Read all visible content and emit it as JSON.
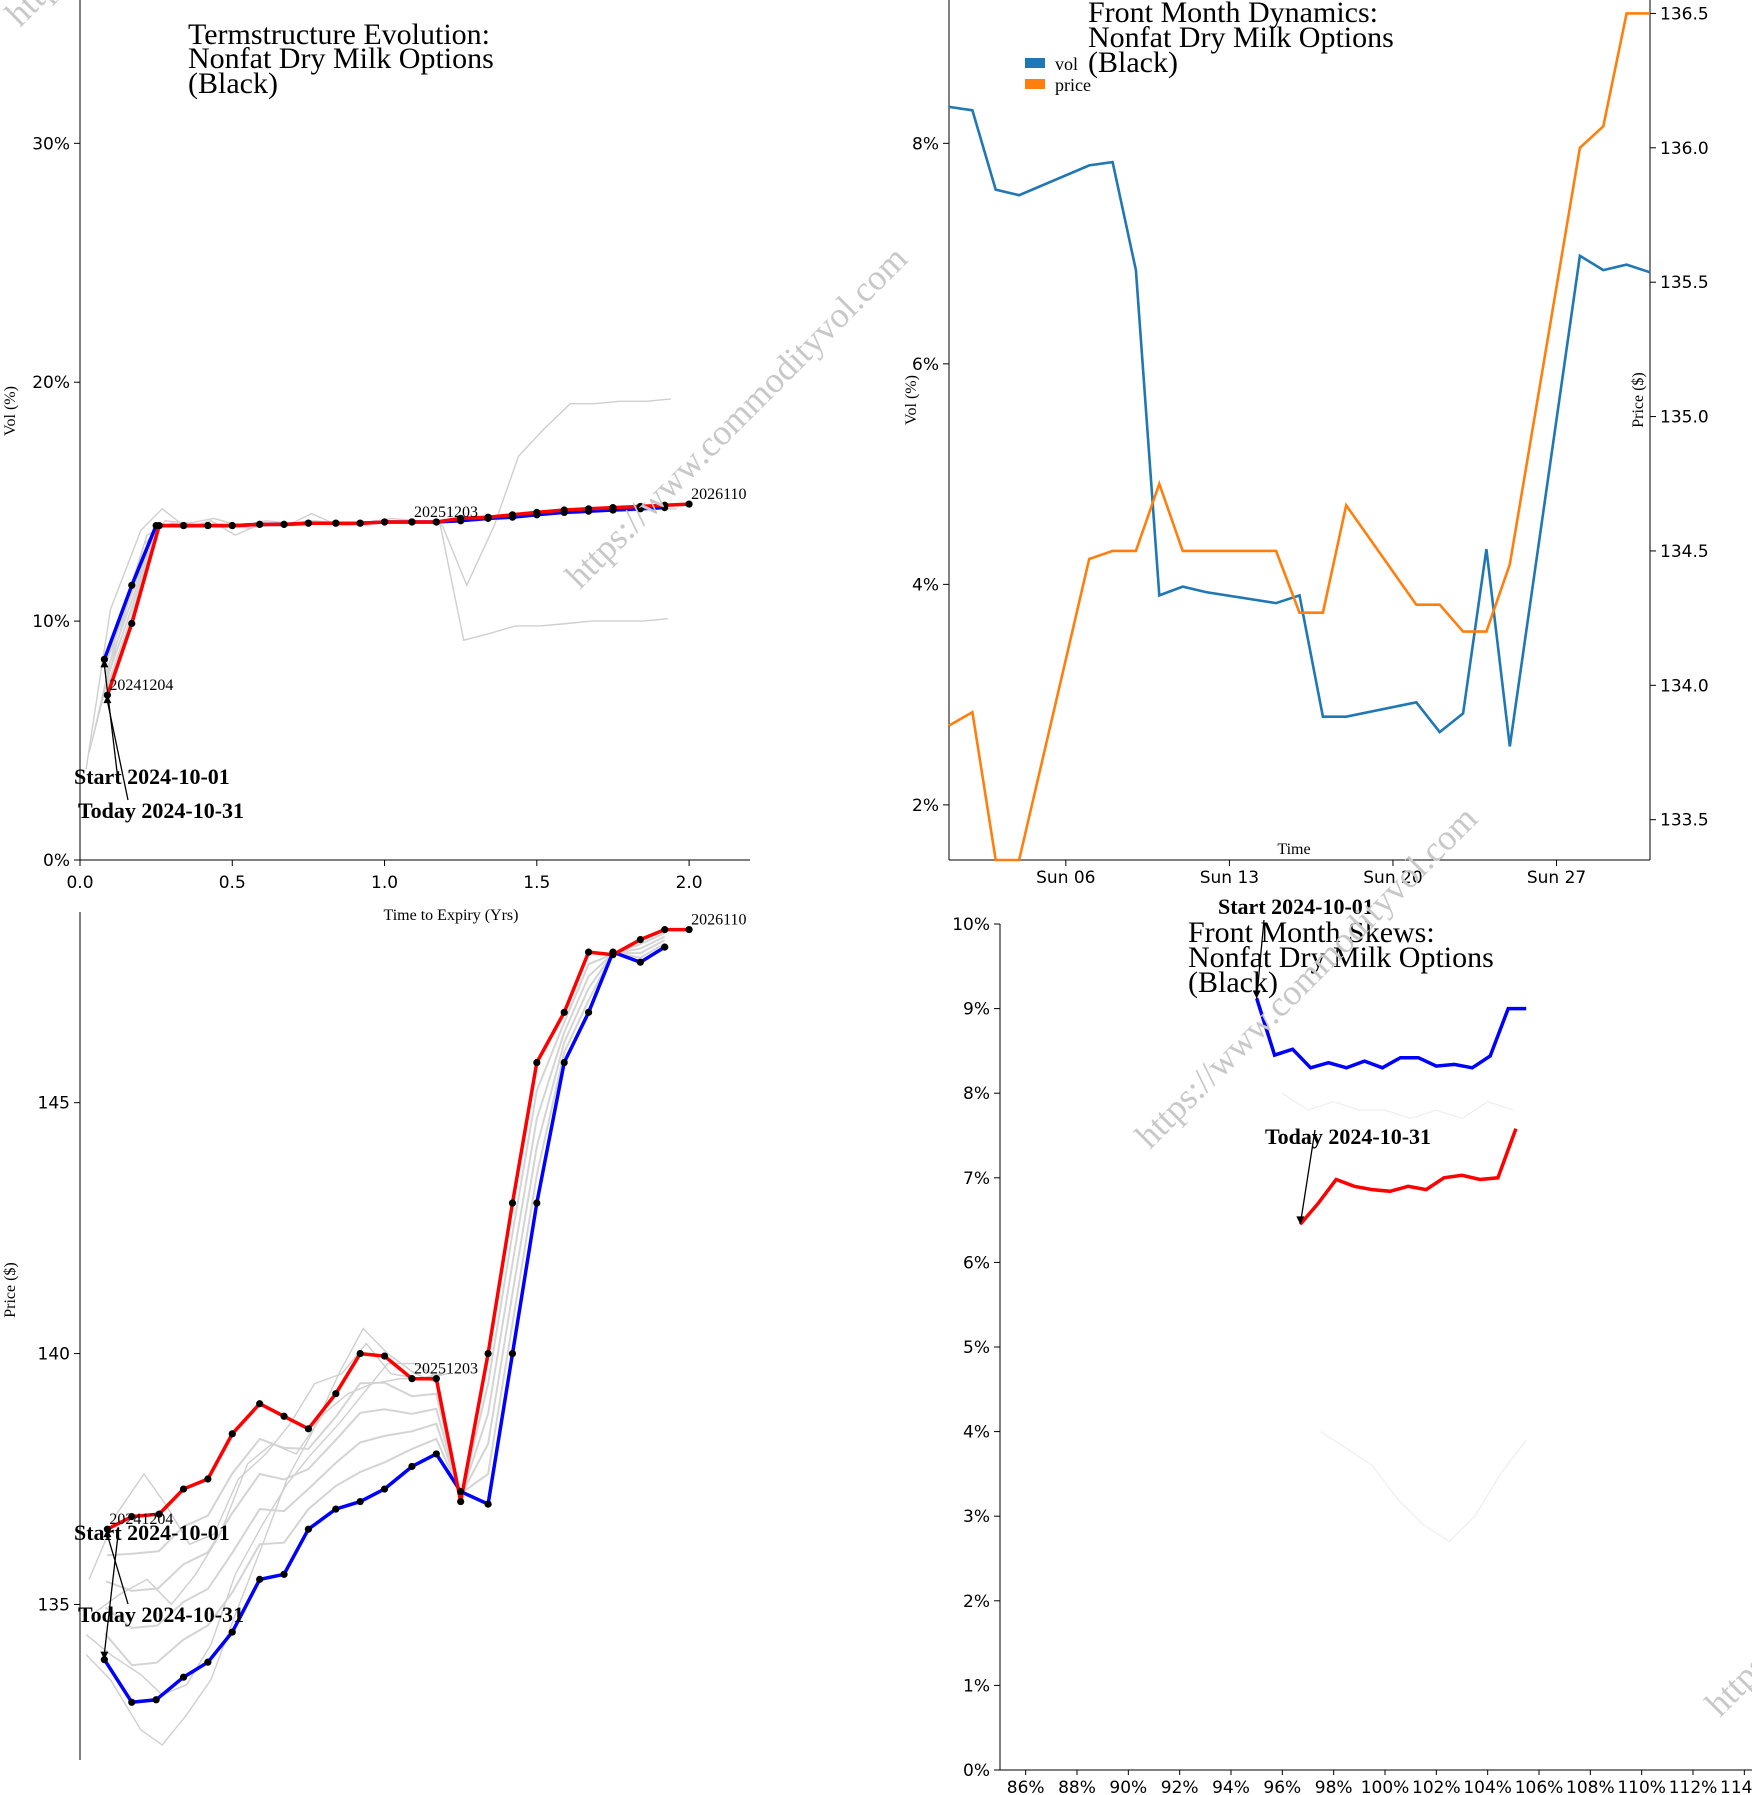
{
  "watermark": "https://www.commodityvol.com",
  "chart_data": [
    {
      "id": "termstructure",
      "type": "line",
      "title": [
        "Termstructure Evolution:",
        "Nonfat Dry Milk Options",
        "(Black)"
      ],
      "xlabel": "Time to Expiry (Yrs)",
      "ylabel": "Vol (%)",
      "xlim": [
        0,
        2.2
      ],
      "ylim": [
        0,
        36
      ],
      "xticks": [
        0,
        0.5,
        1.0,
        1.5,
        2.0
      ],
      "xtick_labels": [
        "0.0",
        "0.5",
        "1.0",
        "1.5",
        "2.0"
      ],
      "yticks": [
        0,
        10,
        20,
        30
      ],
      "ytick_labels": [
        "0%",
        "10%",
        "20%",
        "30%"
      ],
      "series": [
        {
          "color": "#0000ff",
          "x": [
            0.08,
            0.17,
            0.25,
            0.34,
            0.42,
            0.5,
            0.59,
            0.67,
            0.75,
            0.84,
            0.92,
            1.0,
            1.09,
            1.17,
            1.25,
            1.34,
            1.42,
            1.5,
            1.59,
            1.67,
            1.75,
            1.84,
            1.92
          ],
          "y": [
            8.4,
            11.5,
            14.0,
            14.0,
            14.0,
            14.0,
            14.05,
            14.05,
            14.1,
            14.1,
            14.1,
            14.15,
            14.15,
            14.15,
            14.2,
            14.3,
            14.35,
            14.45,
            14.55,
            14.6,
            14.65,
            14.7,
            14.75
          ]
        },
        {
          "color": "#ff0000",
          "x": [
            0.09,
            0.17,
            0.26,
            0.34,
            0.42,
            0.5,
            0.59,
            0.67,
            0.75,
            0.84,
            0.92,
            1.0,
            1.09,
            1.17,
            1.25,
            1.34,
            1.42,
            1.5,
            1.59,
            1.67,
            1.75,
            1.84,
            1.92,
            2.0
          ],
          "y": [
            6.9,
            9.9,
            14.0,
            14.0,
            14.0,
            14.0,
            14.05,
            14.05,
            14.1,
            14.1,
            14.1,
            14.15,
            14.15,
            14.15,
            14.3,
            14.35,
            14.45,
            14.55,
            14.65,
            14.7,
            14.75,
            14.8,
            14.85,
            14.9
          ]
        }
      ],
      "history": [
        {
          "x": [
            0.02,
            0.1,
            0.2,
            0.27,
            0.35,
            0.43,
            0.51,
            0.6,
            0.68,
            0.76,
            0.85,
            0.93,
            1.01,
            1.1,
            1.18,
            1.26,
            1.35,
            1.43,
            1.51,
            1.6,
            1.68,
            1.76,
            1.85,
            1.93
          ],
          "y": [
            3.8,
            10.5,
            13.8,
            14.7,
            13.9,
            14.2,
            13.6,
            14.1,
            14.0,
            14.5,
            14.0,
            14.1,
            14.2,
            14.1,
            14.2,
            9.2,
            9.5,
            9.8,
            9.8,
            9.9,
            10.0,
            10.0,
            10.0,
            10.1
          ]
        },
        {
          "x": [
            0.03,
            0.12,
            0.21,
            0.28,
            0.36,
            0.44,
            0.52,
            0.61,
            0.69,
            0.77,
            0.86,
            0.94,
            1.02,
            1.11,
            1.19,
            1.27,
            1.36,
            1.44,
            1.52,
            1.61,
            1.69,
            1.77,
            1.86,
            1.94
          ],
          "y": [
            4.5,
            9.0,
            13.2,
            14.2,
            14.1,
            14.3,
            14.0,
            14.2,
            14.1,
            14.2,
            14.1,
            14.0,
            14.3,
            14.2,
            14.0,
            11.5,
            14.0,
            16.9,
            18.0,
            19.1,
            19.1,
            19.2,
            19.2,
            19.3
          ]
        },
        {
          "x": [
            0.04,
            0.13,
            0.22,
            0.3,
            0.38,
            0.46,
            0.55,
            0.63,
            0.71,
            0.8,
            0.88,
            0.96,
            1.05,
            1.13,
            1.21,
            1.3,
            1.38,
            1.46,
            1.55,
            1.63,
            1.71,
            1.8,
            1.88,
            1.96
          ],
          "y": [
            5.0,
            10.0,
            13.6,
            14.1,
            14.0,
            14.0,
            13.9,
            14.0,
            14.0,
            14.1,
            14.0,
            14.1,
            14.1,
            14.1,
            14.2,
            14.2,
            14.3,
            14.4,
            14.5,
            14.5,
            14.6,
            14.6,
            14.7,
            14.7
          ]
        }
      ],
      "point_labels": [
        {
          "text": "20241204",
          "x": 0.09,
          "y": 6.9
        },
        {
          "text": "20251203",
          "x": 1.09,
          "y": 14.15
        },
        {
          "text": "2026110",
          "x": 2.0,
          "y": 14.9
        }
      ],
      "annotations": [
        {
          "text": "Start 2024-10-01",
          "target_x": 0.08,
          "target_y": 8.4
        },
        {
          "text": "Today 2024-10-31",
          "target_x": 0.09,
          "target_y": 6.9
        }
      ]
    },
    {
      "id": "frontmonth",
      "type": "line",
      "title": [
        "Front Month Dynamics:",
        "Nonfat Dry Milk Options",
        "(Black)"
      ],
      "xlabel": "Time",
      "ylabel": "Vol (%)",
      "ylabel2": "Price ($)",
      "x_start": "2024-10-01",
      "x_end": "2024-10-31",
      "ylim": [
        1.5,
        9.3
      ],
      "y2lim": [
        133.35,
        136.55
      ],
      "xticks": [
        5,
        12,
        19,
        26
      ],
      "xtick_labels": [
        "Sun 06",
        "Sun 13",
        "Sun 20",
        "Sun 27"
      ],
      "yticks": [
        2,
        4,
        6,
        8
      ],
      "ytick_labels": [
        "2%",
        "4%",
        "6%",
        "8%"
      ],
      "y2ticks": [
        133.5,
        134.0,
        134.5,
        135.0,
        135.5,
        136.0,
        136.5
      ],
      "y2tick_labels": [
        "133.5",
        "134.0",
        "134.5",
        "135.0",
        "135.5",
        "136.0",
        "136.5"
      ],
      "legend": {
        "position": "top-left"
      },
      "series": [
        {
          "name": "vol",
          "color": "#1f77b4",
          "axis": "left",
          "days": [
            0,
            1,
            2,
            3,
            6,
            7,
            8,
            9,
            10,
            11,
            14,
            15,
            16,
            17,
            20,
            21,
            22,
            23,
            24,
            27,
            28,
            29,
            30
          ],
          "values": [
            8.33,
            8.3,
            7.58,
            7.53,
            7.8,
            7.83,
            6.85,
            3.9,
            3.98,
            3.93,
            3.83,
            3.9,
            2.8,
            2.8,
            2.93,
            2.66,
            2.83,
            4.32,
            2.53,
            6.98,
            6.85,
            6.9,
            6.83
          ]
        },
        {
          "name": "price",
          "color": "#ff7f0e",
          "axis": "right",
          "days": [
            0,
            1,
            2,
            3,
            6,
            7,
            8,
            9,
            10,
            11,
            14,
            15,
            16,
            17,
            20,
            21,
            22,
            23,
            24,
            27,
            28,
            29,
            30
          ],
          "values": [
            133.85,
            133.9,
            133.35,
            133.35,
            134.47,
            134.5,
            134.5,
            134.75,
            134.5,
            134.5,
            134.5,
            134.27,
            134.27,
            134.67,
            134.3,
            134.3,
            134.2,
            134.2,
            134.45,
            136.0,
            136.08,
            136.5,
            136.5
          ]
        }
      ]
    },
    {
      "id": "prices",
      "type": "line",
      "title": [],
      "xlabel": "",
      "ylabel": "Price ($)",
      "xlim": [
        0,
        2.2
      ],
      "ylim": [
        131.9,
        148.8
      ],
      "yticks": [
        135,
        140,
        145
      ],
      "ytick_labels": [
        "135",
        "140",
        "145"
      ],
      "series": [
        {
          "color": "#0000ff",
          "x": [
            0.08,
            0.17,
            0.25,
            0.34,
            0.42,
            0.5,
            0.59,
            0.67,
            0.75,
            0.84,
            0.92,
            1.0,
            1.09,
            1.17,
            1.25,
            1.34,
            1.42,
            1.5,
            1.59,
            1.67,
            1.75,
            1.84,
            1.92
          ],
          "y": [
            133.9,
            133.05,
            133.1,
            133.55,
            133.85,
            134.45,
            135.5,
            135.6,
            136.5,
            136.9,
            137.05,
            137.3,
            137.75,
            138.0,
            137.25,
            137.0,
            140.0,
            143.0,
            145.8,
            146.8,
            148.0,
            147.8,
            148.1
          ]
        },
        {
          "color": "#ff0000",
          "x": [
            0.09,
            0.17,
            0.26,
            0.34,
            0.42,
            0.5,
            0.59,
            0.67,
            0.75,
            0.84,
            0.92,
            1.0,
            1.09,
            1.17,
            1.25,
            1.34,
            1.42,
            1.5,
            1.59,
            1.67,
            1.75,
            1.84,
            1.92,
            2.0
          ],
          "y": [
            136.5,
            136.75,
            136.8,
            137.3,
            137.5,
            138.4,
            139.0,
            138.75,
            138.5,
            139.2,
            140.0,
            139.95,
            139.5,
            139.5,
            137.05,
            140.0,
            143.0,
            145.8,
            146.8,
            148.0,
            147.95,
            148.25,
            148.45,
            148.45
          ]
        }
      ],
      "history": [
        {
          "x": [
            0.02,
            0.1,
            0.2,
            0.27,
            0.35,
            0.43,
            0.51,
            0.6,
            0.68,
            0.76,
            0.85,
            0.93,
            1.01,
            1.1,
            1.18
          ],
          "y": [
            134.0,
            133.5,
            132.5,
            132.2,
            132.8,
            133.5,
            134.8,
            136.2,
            137.5,
            138.4,
            139.6,
            140.5,
            140.0,
            139.6,
            139.4
          ]
        },
        {
          "x": [
            0.03,
            0.12,
            0.21,
            0.28,
            0.36,
            0.44,
            0.52,
            0.61,
            0.69,
            0.77,
            0.86,
            0.94,
            1.02,
            1.11,
            1.19
          ],
          "y": [
            135.5,
            136.8,
            137.6,
            137.0,
            136.2,
            136.4,
            137.5,
            138.0,
            138.6,
            139.4,
            139.6,
            140.2,
            139.6,
            139.5,
            139.6
          ]
        },
        {
          "x": [
            0.04,
            0.13,
            0.22,
            0.3,
            0.38,
            0.46,
            0.55,
            0.63,
            0.71,
            0.8,
            0.88,
            0.96,
            1.05,
            1.13,
            1.21
          ],
          "y": [
            134.8,
            135.2,
            135.5,
            135.0,
            135.6,
            136.4,
            137.8,
            138.2,
            138.0,
            138.8,
            139.2,
            139.4,
            139.5,
            139.5,
            139.6
          ]
        },
        {
          "x": [
            0.02,
            0.1,
            0.2,
            0.27,
            0.35,
            0.43,
            0.51,
            0.6,
            0.68,
            0.76,
            0.85,
            0.93,
            1.01,
            1.1,
            1.18
          ],
          "y": [
            134.4,
            134.0,
            133.6,
            133.2,
            133.4,
            134.2,
            135.6,
            136.6,
            137.4,
            138.0,
            138.6,
            139.2,
            139.8,
            139.8,
            139.5
          ]
        }
      ],
      "point_labels": [
        {
          "text": "20241204",
          "x": 0.09,
          "y": 136.5
        },
        {
          "text": "20251203",
          "x": 1.09,
          "y": 139.5
        },
        {
          "text": "2026110",
          "x": 2.0,
          "y": 148.45
        }
      ],
      "annotations": [
        {
          "text": "Start 2024-10-01",
          "target_x": 0.08,
          "target_y": 133.9
        },
        {
          "text": "Today 2024-10-31",
          "target_x": 0.09,
          "target_y": 136.5
        }
      ]
    },
    {
      "id": "skews",
      "type": "line",
      "title": [
        "Front Month Skews:",
        "Nonfat Dry Milk Options",
        "(Black)"
      ],
      "xlabel": "",
      "ylabel": "",
      "xlim": [
        85,
        115
      ],
      "ylim": [
        0,
        10
      ],
      "xticks": [
        86,
        88,
        90,
        92,
        94,
        96,
        98,
        100,
        102,
        104,
        106,
        108,
        110,
        112,
        114
      ],
      "xtick_labels": [
        "86%",
        "88%",
        "90%",
        "92%",
        "94%",
        "96%",
        "98%",
        "100%",
        "102%",
        "104%",
        "106%",
        "108%",
        "110%",
        "112%",
        "114%"
      ],
      "yticks": [
        0,
        1,
        2,
        3,
        4,
        5,
        6,
        7,
        8,
        9,
        10
      ],
      "ytick_labels": [
        "0%",
        "1%",
        "2%",
        "3%",
        "4%",
        "5%",
        "6%",
        "7%",
        "8%",
        "9%",
        "10%"
      ],
      "series": [
        {
          "color": "#0000ff",
          "x": [
            95.0,
            95.7,
            96.4,
            97.1,
            97.8,
            98.5,
            99.2,
            99.9,
            100.6,
            101.3,
            102.0,
            102.7,
            103.4,
            104.1,
            104.8,
            105.5
          ],
          "y": [
            9.12,
            8.45,
            8.52,
            8.3,
            8.36,
            8.3,
            8.38,
            8.3,
            8.42,
            8.42,
            8.32,
            8.34,
            8.3,
            8.44,
            9.0,
            9.0
          ]
        },
        {
          "color": "#ff0000",
          "x": [
            96.7,
            97.4,
            98.1,
            98.8,
            99.5,
            100.2,
            100.9,
            101.6,
            102.3,
            103.0,
            103.7,
            104.4,
            105.1
          ],
          "y": [
            6.45,
            6.7,
            6.98,
            6.9,
            6.86,
            6.84,
            6.9,
            6.86,
            7.0,
            7.03,
            6.98,
            7.0,
            7.58
          ]
        }
      ],
      "history": [
        {
          "x": [
            97.5,
            98.5,
            99.5,
            100.5,
            101.5,
            102.5,
            103.5,
            104.5,
            105.5
          ],
          "y": [
            4.0,
            3.8,
            3.6,
            3.2,
            2.9,
            2.7,
            3.0,
            3.5,
            3.9
          ]
        },
        {
          "x": [
            96.0,
            97.0,
            98.0,
            99.0,
            100.0,
            101.0,
            102.0,
            103.0,
            104.0,
            105.0
          ],
          "y": [
            8.0,
            7.8,
            7.9,
            7.8,
            7.8,
            7.7,
            7.8,
            7.7,
            7.9,
            7.8
          ]
        }
      ],
      "annotations": [
        {
          "text": "Start 2024-10-01",
          "target_x": 95.0,
          "target_y": 9.12
        },
        {
          "text": "Today 2024-10-31",
          "target_x": 96.7,
          "target_y": 6.45
        }
      ]
    }
  ]
}
